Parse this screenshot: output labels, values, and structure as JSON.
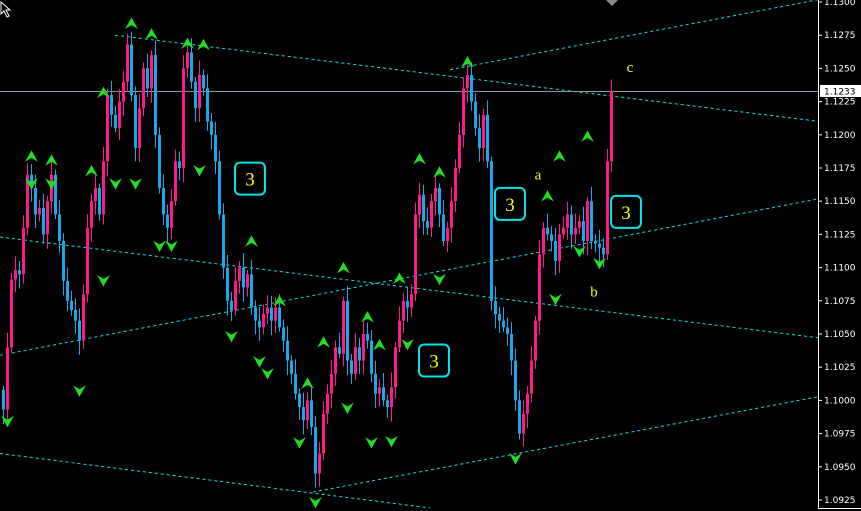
{
  "chart_data": {
    "type": "candlestick",
    "symbol_price_axis": {
      "ticks": [
        "1.1300",
        "1.1275",
        "1.1250",
        "1.1225",
        "1.1200",
        "1.1175",
        "1.1150",
        "1.1125",
        "1.1100",
        "1.1075",
        "1.1050",
        "1.1025",
        "1.1000",
        "1.0975",
        "1.0950",
        "1.0925"
      ],
      "ylim": [
        1.092,
        1.1302
      ],
      "current_price": "1.1233"
    },
    "colors": {
      "background": "#000000",
      "bull": "#ff1a8c",
      "bear": "#19a8e8",
      "fractal": "#22dd22",
      "trendline": "#00e5e5",
      "wave_label": "#ffff00",
      "label_box": "#00e5e5",
      "price_line": "#8899aa"
    },
    "closes": [
      1.0993,
      1.104,
      1.1091,
      1.1098,
      1.1095,
      1.113,
      1.117,
      1.116,
      1.114,
      1.1145,
      1.1125,
      1.115,
      1.117,
      1.114,
      1.112,
      1.109,
      1.1075,
      1.1068,
      1.106,
      1.1045,
      1.108,
      1.113,
      1.115,
      1.116,
      1.114,
      1.118,
      1.123,
      1.1215,
      1.1205,
      1.1225,
      1.124,
      1.1268,
      1.123,
      1.119,
      1.122,
      1.125,
      1.1235,
      1.126,
      1.12,
      1.116,
      1.114,
      1.113,
      1.115,
      1.118,
      1.1175,
      1.125,
      1.1262,
      1.124,
      1.122,
      1.1245,
      1.1235,
      1.121,
      1.12,
      1.118,
      1.114,
      1.11,
      1.1075,
      1.1068,
      1.109,
      1.11,
      1.1085,
      1.1095,
      1.107,
      1.106,
      1.1055,
      1.1065,
      1.107,
      1.106,
      1.107,
      1.1055,
      1.1045,
      1.103,
      1.102,
      1.1005,
      1.0995,
      1.0985,
      1.1,
      1.098,
      1.0945,
      1.096,
      1.099,
      1.1005,
      1.102,
      1.104,
      1.1035,
      1.1075,
      1.103,
      1.102,
      1.104,
      1.103,
      1.105,
      1.1045,
      1.102,
      1.1005,
      1.101,
      1.1,
      1.0995,
      1.101,
      1.104,
      1.106,
      1.1075,
      1.107,
      1.108,
      1.114,
      1.1155,
      1.1135,
      1.113,
      1.115,
      1.116,
      1.114,
      1.112,
      1.113,
      1.115,
      1.1175,
      1.12,
      1.1235,
      1.1245,
      1.1225,
      1.1205,
      1.119,
      1.1215,
      1.118,
      1.1075,
      1.1065,
      1.106,
      1.1055,
      1.105,
      1.103,
      1.1,
      1.0975,
      1.099,
      1.1005,
      1.103,
      1.106,
      1.111,
      1.113,
      1.1125,
      1.112,
      1.1105,
      1.1125,
      1.113,
      1.114,
      1.1125,
      1.113,
      1.1135,
      1.112,
      1.115,
      1.112,
      1.1118,
      1.1115,
      1.111,
      1.118,
      1.1233
    ],
    "trendlines": [
      {
        "from": [
          28.25,
          1.1275
        ],
        "to": [
          204.5,
          1.121
        ]
      },
      {
        "from": [
          112,
          1.1249
        ],
        "to": [
          204.5,
          1.1302
        ]
      },
      {
        "from": [
          -0.5,
          1.1123
        ],
        "to": [
          204.5,
          1.1047
        ]
      },
      {
        "from": [
          -0.5,
          1.1034
        ],
        "to": [
          204.5,
          1.1152
        ]
      },
      {
        "from": [
          -0.5,
          1.096
        ],
        "to": [
          107,
          1.0919
        ]
      },
      {
        "from": [
          77.75,
          1.0931
        ],
        "to": [
          204.5,
          1.1003
        ]
      }
    ],
    "fractals_up": [
      [
        7,
        1.1183
      ],
      [
        12,
        1.118
      ],
      [
        22,
        1.1172
      ],
      [
        25,
        1.1231
      ],
      [
        32,
        1.1283
      ],
      [
        37,
        1.1275
      ],
      [
        46,
        1.1268
      ],
      [
        50,
        1.1267
      ],
      [
        62,
        1.1119
      ],
      [
        69,
        1.1074
      ],
      [
        76,
        1.1012
      ],
      [
        80,
        1.1043
      ],
      [
        85,
        1.1099
      ],
      [
        91,
        1.1062
      ],
      [
        94,
        1.1041
      ],
      [
        99,
        1.1091
      ],
      [
        104,
        1.1181
      ],
      [
        109,
        1.1171
      ],
      [
        116,
        1.1254
      ],
      [
        136,
        1.1153
      ],
      [
        139,
        1.1183
      ],
      [
        146,
        1.1198
      ]
    ],
    "fractals_down": [
      [
        1,
        1.0985
      ],
      [
        7,
        1.1164
      ],
      [
        12,
        1.1164
      ],
      [
        19,
        1.1008
      ],
      [
        25,
        1.1091
      ],
      [
        28,
        1.1164
      ],
      [
        33,
        1.1164
      ],
      [
        39,
        1.1117
      ],
      [
        42,
        1.1117
      ],
      [
        49,
        1.1174
      ],
      [
        57,
        1.1049
      ],
      [
        64,
        1.103
      ],
      [
        66,
        1.1021
      ],
      [
        74,
        1.0969
      ],
      [
        78,
        1.0924
      ],
      [
        86,
        1.0995
      ],
      [
        92,
        1.0969
      ],
      [
        97,
        1.097
      ],
      [
        101,
        1.1043
      ],
      [
        109,
        1.1092
      ],
      [
        128,
        1.0957
      ],
      [
        138,
        1.1077
      ],
      [
        144,
        1.1113
      ],
      [
        149,
        1.1104
      ]
    ],
    "boxed_labels": [
      {
        "text": "3",
        "at": [
          62,
          1.1167
        ]
      },
      {
        "text": "3",
        "at": [
          127,
          1.1148
        ]
      },
      {
        "text": "3",
        "at": [
          108,
          1.103
        ]
      },
      {
        "text": "3",
        "at": [
          156,
          1.1142
        ]
      }
    ],
    "wave_labels": [
      {
        "text": "a",
        "at": [
          134,
          1.117
        ]
      },
      {
        "text": "b",
        "at": [
          148,
          1.1082
        ]
      },
      {
        "text": "c",
        "at": [
          157,
          1.1251
        ]
      }
    ]
  }
}
